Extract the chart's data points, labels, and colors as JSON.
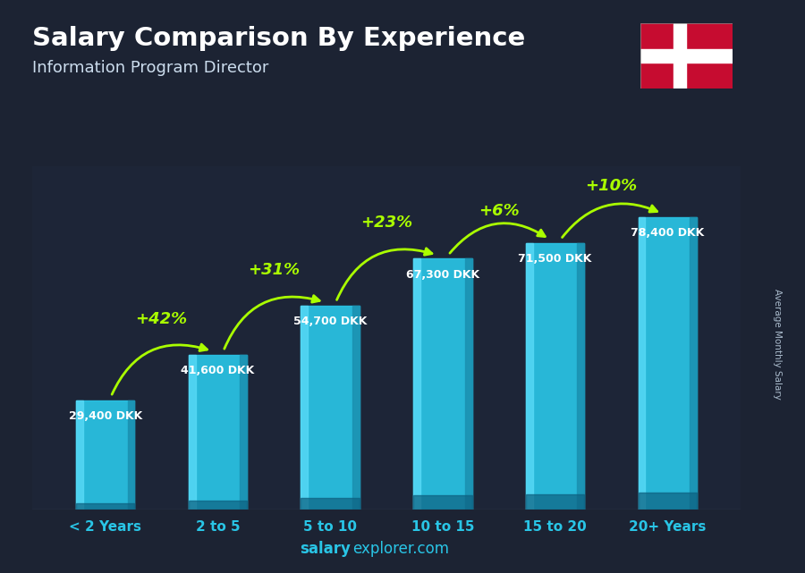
{
  "title": "Salary Comparison By Experience",
  "subtitle": "Information Program Director",
  "categories": [
    "< 2 Years",
    "2 to 5",
    "5 to 10",
    "10 to 15",
    "15 to 20",
    "20+ Years"
  ],
  "values": [
    29400,
    41600,
    54700,
    67300,
    71500,
    78400
  ],
  "value_labels": [
    "29,400 DKK",
    "41,600 DKK",
    "54,700 DKK",
    "67,300 DKK",
    "71,500 DKK",
    "78,400 DKK"
  ],
  "pct_labels": [
    "+42%",
    "+31%",
    "+23%",
    "+6%",
    "+10%"
  ],
  "bar_color_main": "#29c5e6",
  "bar_color_left": "#55d8f5",
  "bar_color_right": "#1a90b0",
  "bar_color_dark_bottom": "#0d6080",
  "bg_color": "#1a1a2e",
  "text_color": "#ffffff",
  "title_color": "#ffffff",
  "subtitle_color": "#ccddee",
  "value_label_color": "#ffffff",
  "pct_color": "#aaff00",
  "arrow_color": "#aaff00",
  "xlabel_color": "#29c5e6",
  "watermark_bold": "salary",
  "watermark_normal": "explorer.com",
  "watermark_color": "#29c5e6",
  "ylabel": "Average Monthly Salary",
  "ylim_max": 92000
}
